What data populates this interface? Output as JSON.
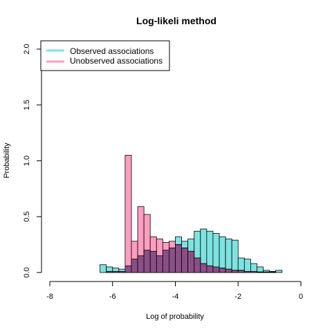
{
  "chart_data": {
    "type": "bar",
    "title": "Log-likeli method",
    "xlabel": "Log of probability",
    "ylabel": "Probability",
    "xlim": [
      -8,
      0
    ],
    "ylim": [
      0,
      2.0
    ],
    "xticks": [
      -8,
      -6,
      -4,
      -2,
      0
    ],
    "yticks": [
      0.0,
      0.5,
      1.0,
      1.5,
      2.0
    ],
    "xtick_labels": [
      "-8",
      "-6",
      "-4",
      "-2",
      "0"
    ],
    "ytick_labels": [
      "0.0",
      "0.5",
      "1.0",
      "1.5",
      "2.0"
    ],
    "bin_width": 0.2,
    "legend": {
      "placement": "top-left",
      "entries": [
        {
          "label": "Observed associations",
          "color": "#7ee3e0"
        },
        {
          "label": "Unobserved associations",
          "color": "#ff9ebf"
        }
      ]
    },
    "series": [
      {
        "name": "Observed associations",
        "color": "#7ee3e0",
        "bins_start": [
          -6.4,
          -6.2,
          -6.0,
          -5.8,
          -5.6,
          -5.4,
          -5.2,
          -5.0,
          -4.8,
          -4.6,
          -4.4,
          -4.2,
          -4.0,
          -3.8,
          -3.6,
          -3.4,
          -3.2,
          -3.0,
          -2.8,
          -2.6,
          -2.4,
          -2.2,
          -2.0,
          -1.8,
          -1.6,
          -1.4,
          -1.2,
          -1.0,
          -0.8
        ],
        "values": [
          0.07,
          0.05,
          0.04,
          0.03,
          0.06,
          0.12,
          0.15,
          0.2,
          0.19,
          0.15,
          0.2,
          0.22,
          0.32,
          0.28,
          0.3,
          0.37,
          0.39,
          0.37,
          0.35,
          0.32,
          0.3,
          0.29,
          0.13,
          0.12,
          0.08,
          0.05,
          0.02,
          0.01,
          0.02
        ]
      },
      {
        "name": "Unobserved associations",
        "color": "#ff9ebf",
        "bins_start": [
          -6.2,
          -6.0,
          -5.8,
          -5.6,
          -5.4,
          -5.2,
          -5.0,
          -4.8,
          -4.6,
          -4.4,
          -4.2,
          -4.0,
          -3.8,
          -3.6,
          -3.4,
          -3.2,
          -3.0,
          -2.8,
          -2.6,
          -2.4,
          -2.2,
          -2.0,
          -1.8,
          -1.6,
          -1.4,
          -1.2,
          -1.0,
          -0.8
        ],
        "values": [
          0.01,
          0.01,
          0.01,
          1.05,
          0.28,
          0.59,
          0.52,
          0.32,
          0.3,
          0.27,
          0.28,
          0.25,
          0.22,
          0.19,
          0.13,
          0.08,
          0.06,
          0.05,
          0.04,
          0.03,
          0.02,
          0.02,
          0.01,
          0.01,
          0.005,
          0.005,
          0.005,
          0.0
        ]
      }
    ],
    "overlap_color": "#8a4f86"
  }
}
